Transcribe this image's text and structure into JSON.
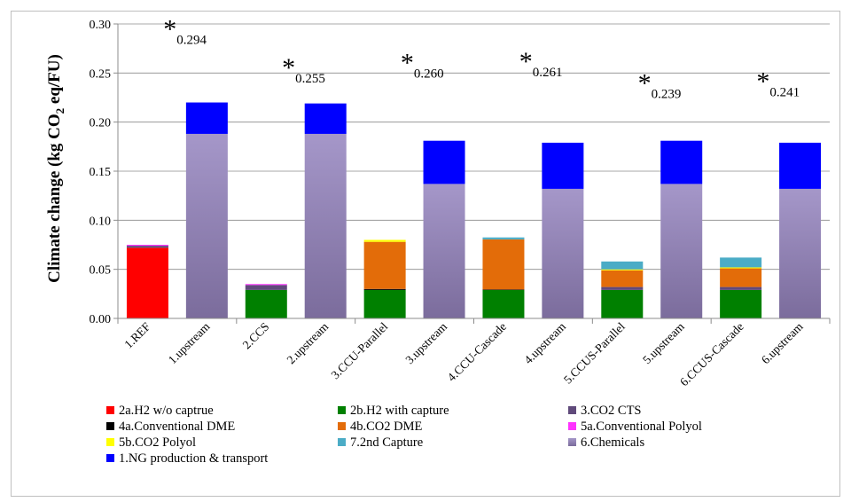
{
  "chart_data": {
    "type": "bar",
    "stacked": true,
    "title": "",
    "ylabel_parts": [
      "Climate change (kg CO",
      "2",
      " eq/FU)"
    ],
    "ylim": [
      0,
      0.3
    ],
    "yticks": [
      "0.00",
      "0.05",
      "0.10",
      "0.15",
      "0.20",
      "0.25",
      "0.30"
    ],
    "grid": true,
    "legend_position": "bottom",
    "categories": [
      "1.REF",
      "1.upstream",
      "2.CCS",
      "2.upstream",
      "3.CCU-Parallel",
      "3.upstream",
      "4.CCU-Cascade",
      "4.upstream",
      "5.CCUS-Parallel",
      "5.upstream",
      "6.CCUS-Cascade",
      "6.upstream"
    ],
    "series": [
      {
        "name": "2a.H2 w/o captrue",
        "color": "#ff0000",
        "values": [
          0.072,
          0,
          0,
          0,
          0,
          0,
          0,
          0,
          0,
          0,
          0,
          0
        ]
      },
      {
        "name": "2b.H2 with capture",
        "color": "#008000",
        "values": [
          0,
          0,
          0.029,
          0,
          0.029,
          0,
          0.029,
          0,
          0.029,
          0,
          0.029,
          0
        ]
      },
      {
        "name": "3.CO2 CTS",
        "color": "#604a7b",
        "values": [
          0.002,
          0,
          0.005,
          0,
          0,
          0,
          0,
          0,
          0.003,
          0,
          0.003,
          0
        ]
      },
      {
        "name": "4a.Conventional DME",
        "color": "#000000",
        "values": [
          0,
          0,
          0,
          0,
          0.001,
          0,
          0.0005,
          0,
          0,
          0,
          0,
          0
        ]
      },
      {
        "name": "4b.CO2 DME",
        "color": "#e36c09",
        "values": [
          0,
          0,
          0,
          0,
          0.048,
          0,
          0.051,
          0,
          0.017,
          0,
          0.019,
          0
        ]
      },
      {
        "name": "5a.Conventional Polyol",
        "color": "#ff33ff",
        "values": [
          0.001,
          0,
          0.001,
          0,
          0,
          0,
          0,
          0,
          0,
          0,
          0,
          0
        ]
      },
      {
        "name": "5b.CO2 Polyol",
        "color": "#ffff00",
        "values": [
          0,
          0,
          0,
          0,
          0.002,
          0,
          0,
          0,
          0.001,
          0,
          0.001,
          0
        ]
      },
      {
        "name": "7.2nd Capture",
        "color": "#4bacc6",
        "values": [
          0,
          0,
          0,
          0,
          0,
          0,
          0.002,
          0,
          0.008,
          0,
          0.01,
          0
        ]
      },
      {
        "name": "6.Chemicals",
        "color": "#9d8fbf",
        "values": [
          0,
          0.188,
          0,
          0.188,
          0,
          0.137,
          0,
          0.132,
          0,
          0.137,
          0,
          0.132
        ]
      },
      {
        "name": "1.NG production & transport",
        "color": "#0000ff",
        "values": [
          0,
          0.032,
          0,
          0.031,
          0,
          0.044,
          0,
          0.047,
          0,
          0.044,
          0,
          0.047
        ]
      }
    ],
    "annotations": [
      {
        "group": 1,
        "value": "0.294",
        "y": 0.294
      },
      {
        "group": 2,
        "value": "0.255",
        "y": 0.255
      },
      {
        "group": 3,
        "value": "0.260",
        "y": 0.26
      },
      {
        "group": 4,
        "value": "0.261",
        "y": 0.261
      },
      {
        "group": 5,
        "value": "0.239",
        "y": 0.239
      },
      {
        "group": 6,
        "value": "0.241",
        "y": 0.241
      }
    ],
    "annotation_marker": "*"
  }
}
